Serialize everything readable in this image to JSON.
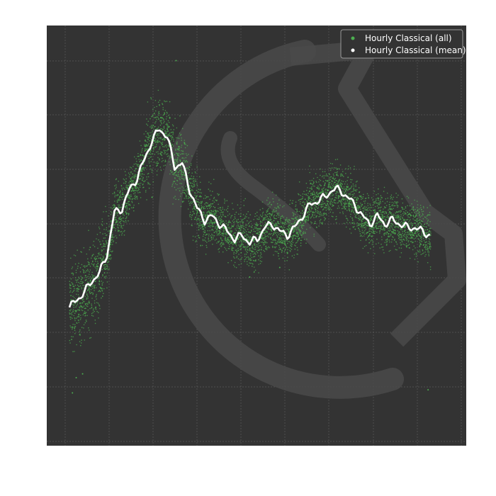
{
  "chart_data": {
    "type": "scatter",
    "title": "",
    "xlabel": "",
    "ylabel": "",
    "grid": true,
    "legend_position": "top-right",
    "x_range": [
      0,
      100
    ],
    "y_range": [
      0,
      100
    ],
    "colors": {
      "background": "#333333",
      "grid": "#5a5a5a",
      "scatter": "#4caf50",
      "mean_line": "#ffffff",
      "watermark": "#4a4a4a",
      "legend_bg": "#333333",
      "legend_border": "#999999"
    },
    "series": [
      {
        "name": "Hourly Classical (all)",
        "kind": "scatter",
        "color": "#4caf50",
        "points_per_x": 14,
        "noise": 5,
        "outliers": [
          [
            0.8,
            8.5
          ],
          [
            1.8,
            12.5
          ],
          [
            3.5,
            13.5
          ],
          [
            28.4,
            96
          ],
          [
            95.5,
            9.3
          ],
          [
            56,
            41.5
          ],
          [
            48,
            39
          ],
          [
            22,
            60
          ]
        ]
      },
      {
        "name": "Hourly Classical (mean)",
        "kind": "line",
        "color": "#ffffff",
        "x": [
          0,
          2,
          4,
          6,
          8,
          10,
          12,
          14,
          16,
          18,
          20,
          22,
          24,
          26,
          28,
          30,
          32,
          34,
          36,
          38,
          40,
          42,
          44,
          46,
          48,
          50,
          52,
          54,
          56,
          58,
          60,
          62,
          64,
          66,
          68,
          70,
          72,
          74,
          76,
          78,
          80,
          82,
          84,
          86,
          88,
          90,
          92,
          94,
          96
        ],
        "y": [
          31,
          33,
          35,
          38,
          40,
          45,
          56,
          57,
          62,
          65,
          70,
          75,
          78,
          76,
          68,
          69,
          62,
          57,
          54,
          55,
          53,
          51,
          49,
          50,
          48,
          49,
          52,
          53,
          51,
          50,
          52,
          55,
          58,
          59,
          60,
          62,
          62,
          60,
          58,
          55,
          53,
          55,
          53,
          54,
          53,
          52,
          52,
          51,
          50
        ]
      }
    ]
  }
}
